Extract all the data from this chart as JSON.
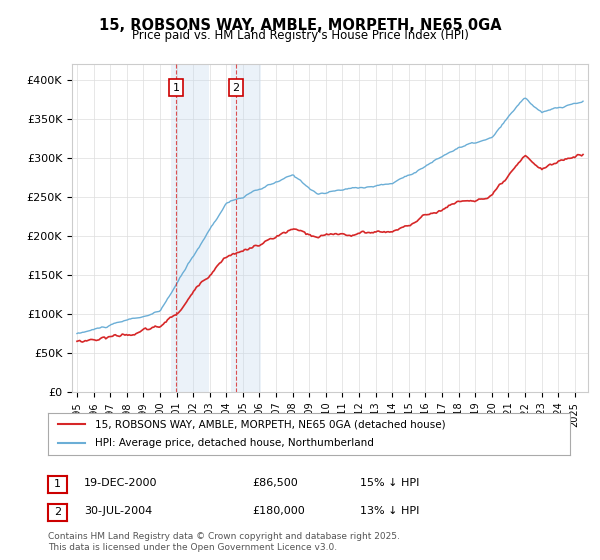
{
  "title": "15, ROBSONS WAY, AMBLE, MORPETH, NE65 0GA",
  "subtitle": "Price paid vs. HM Land Registry's House Price Index (HPI)",
  "ylim": [
    0,
    420000
  ],
  "yticks": [
    0,
    50000,
    100000,
    150000,
    200000,
    250000,
    300000,
    350000,
    400000
  ],
  "ytick_labels": [
    "£0",
    "£50K",
    "£100K",
    "£150K",
    "£200K",
    "£250K",
    "£300K",
    "£350K",
    "£400K"
  ],
  "hpi_color": "#6baed6",
  "price_color": "#d62728",
  "sale1_date": 2000.97,
  "sale1_price": 86500,
  "sale2_date": 2004.58,
  "sale2_price": 180000,
  "vspan_color": "#c6dbef",
  "legend_entry1": "15, ROBSONS WAY, AMBLE, MORPETH, NE65 0GA (detached house)",
  "legend_entry2": "HPI: Average price, detached house, Northumberland",
  "table_row1": [
    "1",
    "19-DEC-2000",
    "£86,500",
    "15% ↓ HPI"
  ],
  "table_row2": [
    "2",
    "30-JUL-2004",
    "£180,000",
    "13% ↓ HPI"
  ],
  "footer": "Contains HM Land Registry data © Crown copyright and database right 2025.\nThis data is licensed under the Open Government Licence v3.0.",
  "background_color": "#ffffff",
  "grid_color": "#dddddd"
}
